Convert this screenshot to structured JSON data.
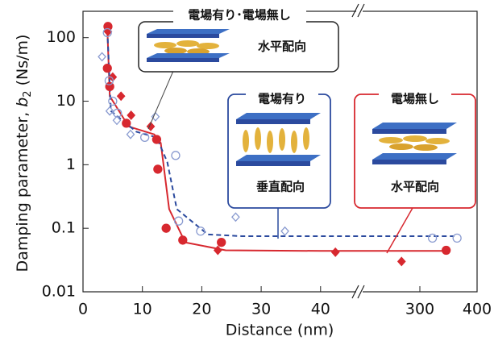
{
  "chart_data": {
    "type": "scatter",
    "x_label": "Distance (nm)",
    "y_label": [
      "Damping parameter, ",
      "b",
      "2",
      " (Ns/m)"
    ],
    "y_scale": "log",
    "ylim": [
      0.01,
      260
    ],
    "yticks": [
      0.01,
      0.1,
      1,
      10,
      100
    ],
    "x_segments": [
      {
        "xlim": [
          0,
          46
        ],
        "xticks": [
          0,
          10,
          20,
          30,
          40
        ]
      },
      {
        "xlim": [
          200,
          400
        ],
        "xticks": [
          300,
          400
        ]
      }
    ],
    "series": [
      {
        "color": "#d7282f",
        "marker": "circle",
        "filled": true,
        "x": [
          4.2,
          4.1,
          4.5,
          7.3,
          12.4,
          12.6,
          14,
          16.8,
          23.3,
          346
        ],
        "values": [
          150,
          33,
          17,
          4.5,
          2.5,
          0.85,
          0.1,
          0.065,
          0.06,
          0.045
        ]
      },
      {
        "color": "#d7282f",
        "marker": "diamond",
        "filled": true,
        "x": [
          4.2,
          5,
          6.4,
          8.1,
          11.4,
          22.7,
          42.5,
          268
        ],
        "values": [
          125,
          24,
          12,
          6,
          4,
          0.045,
          0.042,
          0.03
        ]
      },
      {
        "color": "#8a9bd0",
        "marker": "circle",
        "filled": false,
        "x": [
          4.1,
          4.4,
          5,
          5.8,
          10.4,
          15.6,
          16.1,
          19.8,
          322,
          365
        ],
        "values": [
          120,
          21,
          10,
          6.5,
          2.7,
          1.4,
          0.13,
          0.09,
          0.07,
          0.07
        ]
      },
      {
        "color": "#8a9bd0",
        "marker": "diamond",
        "filled": false,
        "x": [
          3.2,
          4.5,
          5.7,
          8,
          12.2,
          25.7,
          34
        ],
        "values": [
          50,
          7,
          5,
          3,
          5.7,
          0.15,
          0.09
        ]
      }
    ],
    "curves": [
      {
        "color": "#d7282f",
        "style": "solid",
        "x": [
          4.1,
          4.5,
          7.7,
          12,
          13.1,
          14.5,
          17.2,
          24,
          40,
          346
        ],
        "values": [
          140,
          12,
          4,
          3,
          2.2,
          0.2,
          0.06,
          0.045,
          0.044,
          0.044
        ]
      },
      {
        "color": "#2b4a9e",
        "style": "dashed",
        "x": [
          4.1,
          4.7,
          9,
          12.4,
          14.2,
          15.8,
          21,
          26.7,
          45.6,
          360
        ],
        "values": [
          130,
          7,
          3.3,
          2.7,
          1.1,
          0.2,
          0.08,
          0.075,
          0.075,
          0.075
        ]
      }
    ],
    "annotations": {
      "both": {
        "title": "電場有り･電場無し",
        "text": "水平配向"
      },
      "on": {
        "title": "電場有り",
        "text": "垂直配向"
      },
      "off": {
        "title": "電場無し",
        "text": "水平配向"
      }
    }
  }
}
